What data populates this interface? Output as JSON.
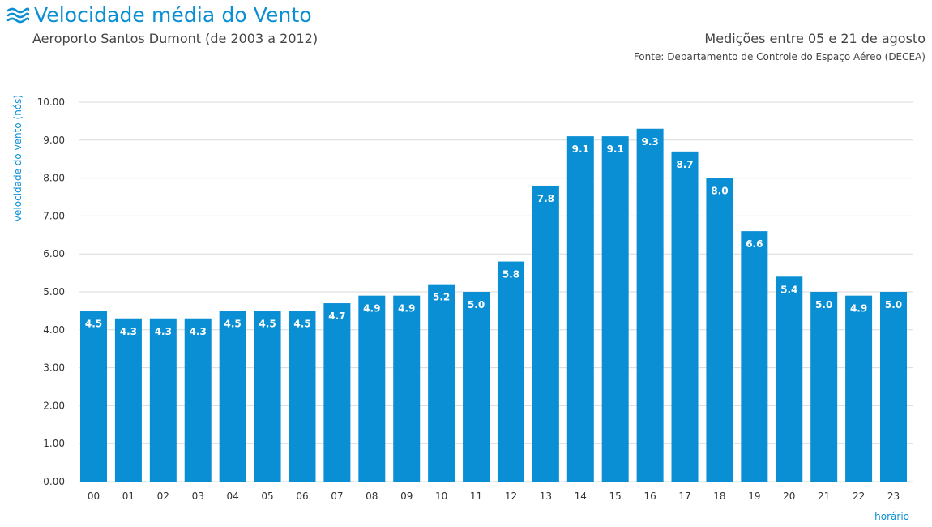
{
  "header": {
    "title": "Velocidade média do Vento",
    "subtitle": "Aeroporto Santos Dumont (de 2003 a 2012)",
    "period": "Medições entre 05 e 21 de agosto",
    "source": "Fonte: Departamento de Controle do Espaço Aéreo (DECEA)",
    "icon": "wind-waves-icon"
  },
  "colors": {
    "accent": "#0b8fd4",
    "bar": "#0b8fd4",
    "grid": "#d9d9d9"
  },
  "chart_data": {
    "type": "bar",
    "title": "Velocidade média do Vento",
    "xlabel": "horário",
    "ylabel": "velocidade do vento (nós)",
    "ylim": [
      0,
      10
    ],
    "yticks": [
      "0.00",
      "1.00",
      "2.00",
      "3.00",
      "4.00",
      "5.00",
      "6.00",
      "7.00",
      "8.00",
      "9.00",
      "10.00"
    ],
    "grid": true,
    "categories": [
      "00",
      "01",
      "02",
      "03",
      "04",
      "05",
      "06",
      "07",
      "08",
      "09",
      "10",
      "11",
      "12",
      "13",
      "14",
      "15",
      "16",
      "17",
      "18",
      "19",
      "20",
      "21",
      "22",
      "23"
    ],
    "values": [
      4.5,
      4.3,
      4.3,
      4.3,
      4.5,
      4.5,
      4.5,
      4.7,
      4.9,
      4.9,
      5.2,
      5.0,
      5.8,
      7.8,
      9.1,
      9.1,
      9.3,
      8.7,
      8.0,
      6.6,
      5.4,
      5.0,
      4.9,
      5.0
    ]
  }
}
